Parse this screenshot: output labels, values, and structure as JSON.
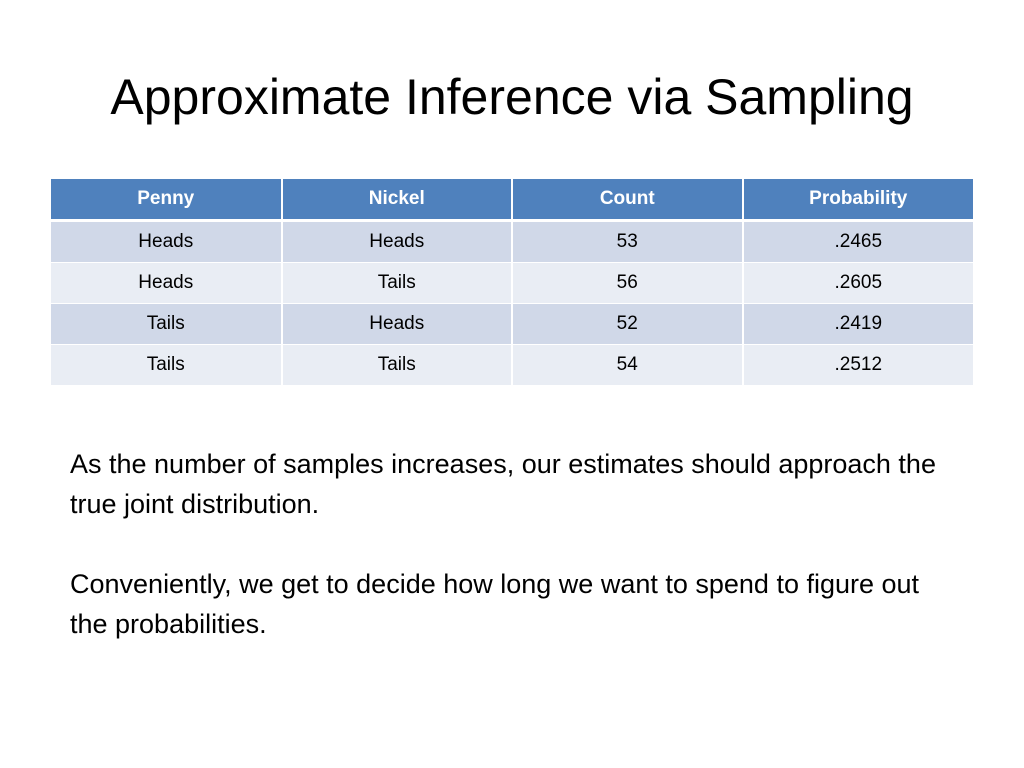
{
  "slide": {
    "title": "Approximate Inference via Sampling",
    "table": {
      "columns": [
        "Penny",
        "Nickel",
        "Count",
        "Probability"
      ],
      "rows": [
        [
          "Heads",
          "Heads",
          "53",
          ".2465"
        ],
        [
          "Heads",
          "Tails",
          "56",
          ".2605"
        ],
        [
          "Tails",
          "Heads",
          "52",
          ".2419"
        ],
        [
          "Tails",
          "Tails",
          "54",
          ".2512"
        ]
      ]
    },
    "paragraphs": [
      "As the number of samples increases, our estimates should approach the true joint distribution.",
      "Conveniently, we get to decide how long we want to spend to figure out the probabilities."
    ]
  },
  "colors": {
    "header_bg": "#4f81bd",
    "row_odd_bg": "#d0d8e8",
    "row_even_bg": "#e9edf4"
  }
}
